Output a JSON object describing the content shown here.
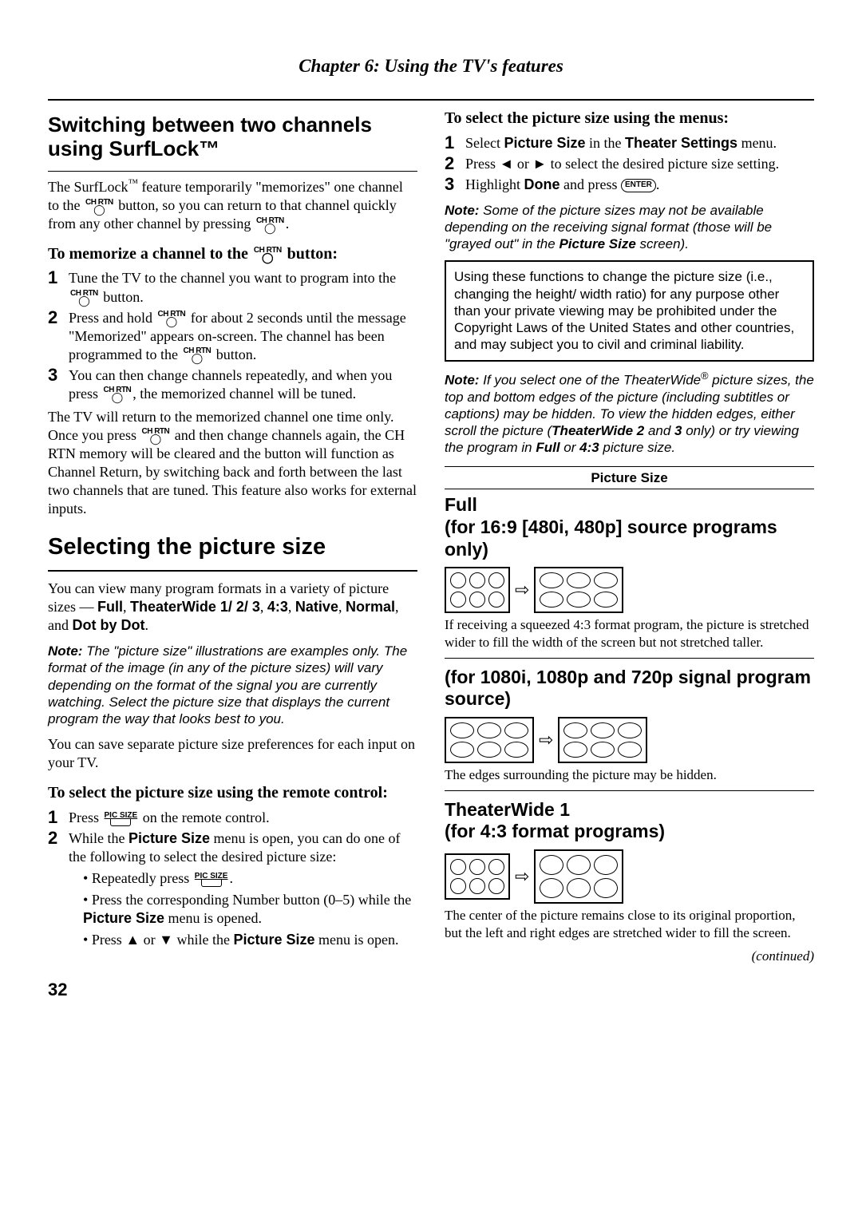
{
  "chapter": "Chapter 6: Using the TV's features",
  "left": {
    "h1": "Switching between two channels using SurfLock™",
    "p1_a": "The SurfLock",
    "p1_tm": "™",
    "p1_b": " feature temporarily \"memorizes\" one channel to the ",
    "p1_c": " button, so you can return to that channel quickly from any other channel by pressing ",
    "p1_d": ".",
    "mem_h": "To memorize a channel to the ",
    "mem_h2": " button:",
    "mem_li1_a": "Tune the TV to the channel you want to program into the ",
    "mem_li1_b": " button.",
    "mem_li2_a": "Press and hold ",
    "mem_li2_b": " for about 2 seconds until the message \"Memorized\" appears on-screen. The channel has been programmed to the ",
    "mem_li2_c": " button.",
    "mem_li3_a": "You can then change channels repeatedly, and when you press ",
    "mem_li3_b": ", the memorized channel will be tuned.",
    "p2_a": "The TV will return to the memorized channel one time only. Once you press ",
    "p2_b": " and then change channels again, the CH RTN memory will be cleared and the button will function as Channel Return, by switching back and forth between the last two channels that are tuned. This feature also works for external inputs.",
    "h2": "Selecting the picture size",
    "p3_a": "You can view many program formats in a variety of picture sizes — ",
    "p3_b": "Full",
    "p3_c": ", ",
    "p3_d": "TheaterWide 1/ 2/ 3",
    "p3_e": ", ",
    "p3_f": "4:3",
    "p3_g": ", ",
    "p3_h": "Native",
    "p3_i": ", ",
    "p3_j": "Normal",
    "p3_k": ", and ",
    "p3_l": "Dot by Dot",
    "p3_m": ".",
    "note1_label": "Note:",
    "note1": " The \"picture size\" illustrations are examples only. The format of the image (in any of the picture sizes) will vary depending on the format of the signal you are currently watching. Select the picture size that displays the current program the way that looks best to you.",
    "p4": "You can save separate picture size preferences for each input on your TV.",
    "remote_h": "To select the picture size using the remote control:",
    "r_li1_a": "Press ",
    "r_li1_b": " on the remote control.",
    "r_li2_a": "While the ",
    "r_li2_ps": "Picture Size",
    "r_li2_b": " menu is open, you can do one of the following to select the desired picture size:",
    "r_b1_a": "Repeatedly press ",
    "r_b1_b": ".",
    "r_b2_a": "Press the corresponding Number button (0–5) while the ",
    "r_b2_ps": "Picture Size",
    "r_b2_b": " menu is opened.",
    "r_b3_a": "Press ",
    "r_b3_up": "▲",
    "r_b3_or": " or ",
    "r_b3_dn": "▼",
    "r_b3_b": " while the ",
    "r_b3_ps": "Picture Size",
    "r_b3_c": " menu is open."
  },
  "right": {
    "menu_h": "To select the picture size using the menus:",
    "m_li1_a": "Select ",
    "m_li1_ps": "Picture Size",
    "m_li1_b": " in the ",
    "m_li1_ts": "Theater Settings",
    "m_li1_c": " menu.",
    "m_li2_a": "Press ",
    "m_li2_l": "◄",
    "m_li2_or": " or ",
    "m_li2_r": "►",
    "m_li2_b": " to select the desired picture size setting.",
    "m_li3_a": "Highlight ",
    "m_li3_done": "Done",
    "m_li3_b": " and press ",
    "m_li3_c": ".",
    "note2_label": "Note:",
    "note2_a": " Some of the picture sizes may not be available depending on the receiving signal format (those will be \"grayed out\" in the ",
    "note2_ps": "Picture Size",
    "note2_b": " screen).",
    "box": "Using these functions to change the picture size (i.e., changing the height/ width ratio) for any purpose other than your private viewing may be prohibited under the Copyright Laws of the United States and other countries, and may subject you to civil and criminal liability.",
    "note3_label": "Note:",
    "note3_a": " If you select one of the TheaterWide",
    "note3_reg": "®",
    "note3_b": " picture sizes, the top and bottom edges of the picture (including subtitles or captions) may be hidden. To view the hidden edges, either scroll the picture (",
    "note3_tw2": "TheaterWide 2",
    "note3_and": " and ",
    "note3_3": "3",
    "note3_c": " only) or try viewing the program in ",
    "note3_full": "Full",
    "note3_or": " or ",
    "note3_43": "4:3",
    "note3_d": " picture size.",
    "ps_label": "Picture Size",
    "full_h": "Full",
    "full_sub": "(for 16:9 [480i, 480p] source programs only)",
    "full_cap": "If receiving a squeezed 4:3 format program, the picture is stretched wider to fill the width of the screen but not stretched taller.",
    "hd_sub": "(for 1080i, 1080p and 720p signal program source)",
    "hd_cap": "The edges surrounding the picture may be hidden.",
    "tw1_h": "TheaterWide 1",
    "tw1_sub": "(for 4:3 format programs)",
    "tw1_cap": "The center of the picture remains close to its original proportion, but the left and right edges are stretched wider to fill the screen.",
    "continued": "(continued)"
  },
  "icons": {
    "chrtn": "CH RTN",
    "picsize": "PIC SIZE",
    "enter": "ENTER"
  },
  "page_num": "32"
}
